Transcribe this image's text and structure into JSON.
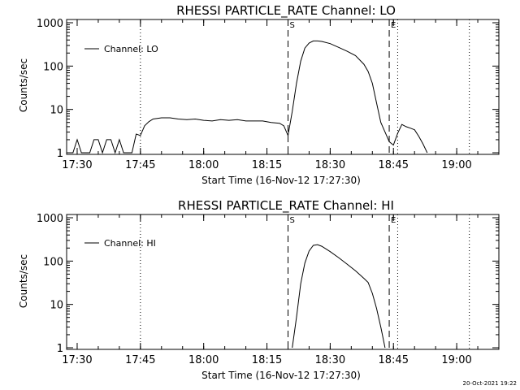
{
  "footer": {
    "timestamp": "20-Oct-2021 19:22"
  },
  "chart_data": [
    {
      "type": "line",
      "title": "RHESSI PARTICLE_RATE Channel: LO",
      "xlabel": "Start Time (16-Nov-12 17:27:30)",
      "ylabel": "Counts/sec",
      "y_scale": "log",
      "ylim": [
        1,
        1000
      ],
      "y_ticks": [
        "1",
        "10",
        "100",
        "1000"
      ],
      "x_ticks": [
        "17:30",
        "17:45",
        "18:00",
        "18:15",
        "18:30",
        "18:45",
        "19:00"
      ],
      "xlim": [
        "17:27:30",
        "19:10:00"
      ],
      "legend": {
        "placement": "top-left"
      },
      "markers": [
        {
          "label": "S",
          "time": "18:20",
          "style": "dashed"
        },
        {
          "label": "E",
          "time": "18:44",
          "style": "dashed"
        },
        {
          "label": "",
          "time": "18:46",
          "style": "dotted"
        },
        {
          "label": "",
          "time": "17:45",
          "style": "dotted"
        },
        {
          "label": "",
          "time": "19:03",
          "style": "dotted"
        }
      ],
      "series": [
        {
          "name": "Channel: LO",
          "x": [
            "17:28",
            "17:29",
            "17:30",
            "17:31",
            "17:32",
            "17:33",
            "17:34",
            "17:35",
            "17:36",
            "17:37",
            "17:38",
            "17:39",
            "17:40",
            "17:41",
            "17:42",
            "17:43",
            "17:44",
            "17:45",
            "17:46",
            "17:47",
            "17:48",
            "17:50",
            "17:52",
            "17:54",
            "17:56",
            "17:58",
            "18:00",
            "18:02",
            "18:04",
            "18:06",
            "18:08",
            "18:10",
            "18:12",
            "18:14",
            "18:16",
            "18:18",
            "18:19",
            "18:20",
            "18:21",
            "18:22",
            "18:23",
            "18:24",
            "18:25",
            "18:26",
            "18:27",
            "18:28",
            "18:30",
            "18:32",
            "18:34",
            "18:36",
            "18:38",
            "18:39",
            "18:40",
            "18:41",
            "18:42",
            "18:43",
            "18:44",
            "18:45",
            "18:46",
            "18:47",
            "18:48",
            "18:49",
            "18:50",
            "18:51",
            "18:52",
            "18:53"
          ],
          "y": [
            1,
            1,
            2,
            1,
            1,
            1,
            2,
            2,
            1,
            2,
            2,
            1,
            2,
            1,
            1,
            1,
            2.7,
            2.5,
            4.2,
            5.2,
            6,
            6.4,
            6.4,
            6,
            5.8,
            6,
            5.6,
            5.4,
            5.8,
            5.6,
            5.8,
            5.4,
            5.4,
            5.4,
            5,
            4.8,
            4.2,
            2.5,
            9,
            40,
            130,
            260,
            340,
            380,
            380,
            370,
            330,
            270,
            220,
            175,
            110,
            75,
            40,
            14,
            5,
            3,
            1.8,
            1.5,
            2.8,
            4.5,
            4,
            3.7,
            3.4,
            2.4,
            1.6,
            1
          ]
        }
      ]
    },
    {
      "type": "line",
      "title": "RHESSI PARTICLE_RATE Channel: HI",
      "xlabel": "Start Time (16-Nov-12 17:27:30)",
      "ylabel": "Counts/sec",
      "y_scale": "log",
      "ylim": [
        1,
        1000
      ],
      "y_ticks": [
        "1",
        "10",
        "100",
        "1000"
      ],
      "x_ticks": [
        "17:30",
        "17:45",
        "18:00",
        "18:15",
        "18:30",
        "18:45",
        "19:00"
      ],
      "xlim": [
        "17:27:30",
        "19:10:00"
      ],
      "legend": {
        "placement": "top-left"
      },
      "markers": [
        {
          "label": "S",
          "time": "18:20",
          "style": "dashed"
        },
        {
          "label": "E",
          "time": "18:44",
          "style": "dashed"
        },
        {
          "label": "",
          "time": "18:46",
          "style": "dotted"
        },
        {
          "label": "",
          "time": "17:45",
          "style": "dotted"
        },
        {
          "label": "",
          "time": "19:03",
          "style": "dotted"
        }
      ],
      "series": [
        {
          "name": "Channel: HI",
          "x": [
            "18:21",
            "18:22",
            "18:23",
            "18:24",
            "18:25",
            "18:26",
            "18:27",
            "18:28",
            "18:30",
            "18:32",
            "18:34",
            "18:36",
            "18:38",
            "18:39",
            "18:40",
            "18:41",
            "18:42",
            "18:43"
          ],
          "y": [
            1,
            5,
            30,
            90,
            170,
            230,
            240,
            220,
            165,
            120,
            85,
            60,
            40,
            32,
            18,
            8,
            3,
            1
          ]
        }
      ]
    }
  ]
}
